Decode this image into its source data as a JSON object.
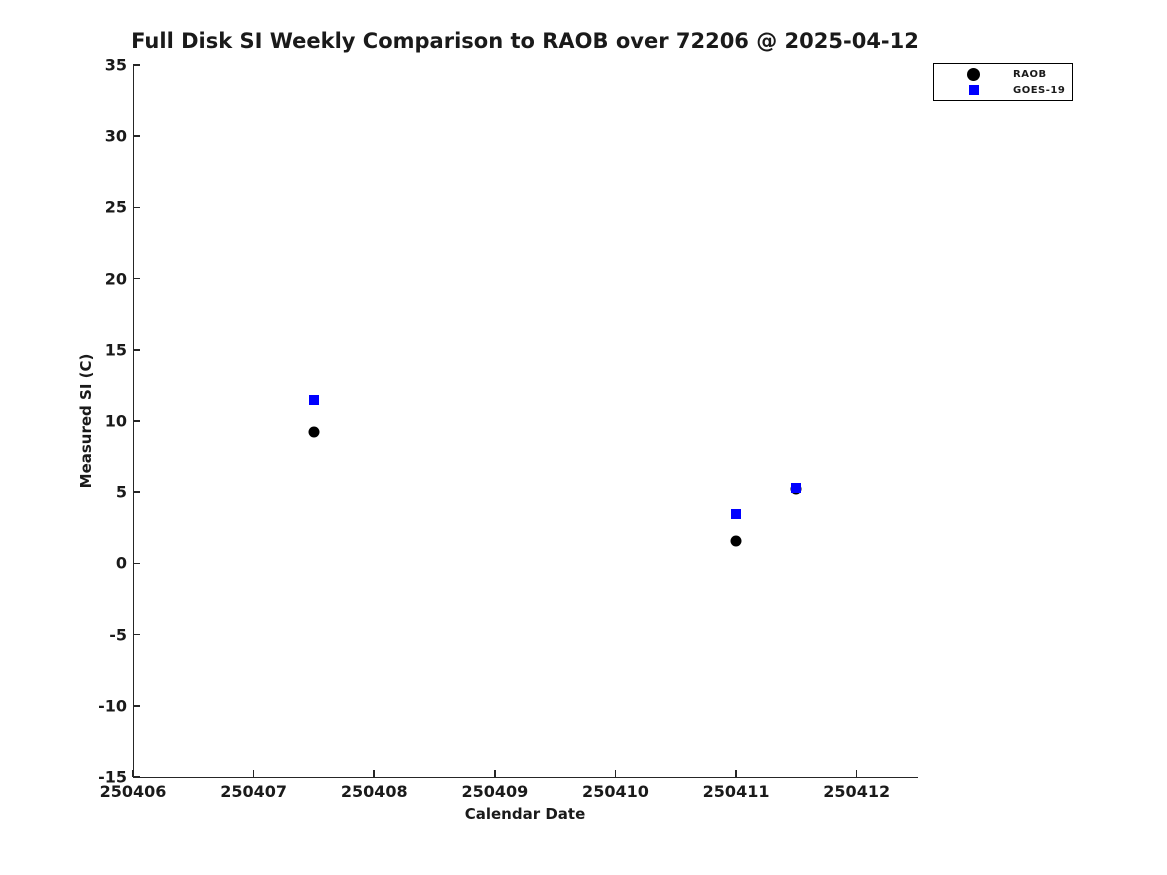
{
  "chart_data": {
    "type": "scatter",
    "title": "Full Disk SI Weekly Comparison to RAOB over 72206 @ 2025-04-12",
    "xlabel": "Calendar Date",
    "ylabel": "Measured SI (C)",
    "xlim": [
      250406,
      250412.5
    ],
    "ylim": [
      -15,
      35
    ],
    "x_ticks": [
      250406,
      250407,
      250408,
      250409,
      250410,
      250411,
      250412
    ],
    "y_ticks": [
      35,
      30,
      25,
      20,
      15,
      10,
      5,
      0,
      -5,
      -10,
      -15
    ],
    "grid": false,
    "background": "#ffffff",
    "axis_color": "#262626",
    "text_color": "#1a1a1a",
    "legend_position": "top-right",
    "series": [
      {
        "name": "RAOB",
        "marker": "circle",
        "color": "#000000",
        "points": [
          {
            "x": 250407.5,
            "y": 9.2
          },
          {
            "x": 250411.0,
            "y": 1.6
          },
          {
            "x": 250411.5,
            "y": 5.2
          }
        ]
      },
      {
        "name": "GOES-19",
        "marker": "square",
        "color": "#0000ff",
        "points": [
          {
            "x": 250407.5,
            "y": 11.5
          },
          {
            "x": 250411.0,
            "y": 3.5
          },
          {
            "x": 250411.5,
            "y": 5.3
          }
        ]
      }
    ]
  }
}
